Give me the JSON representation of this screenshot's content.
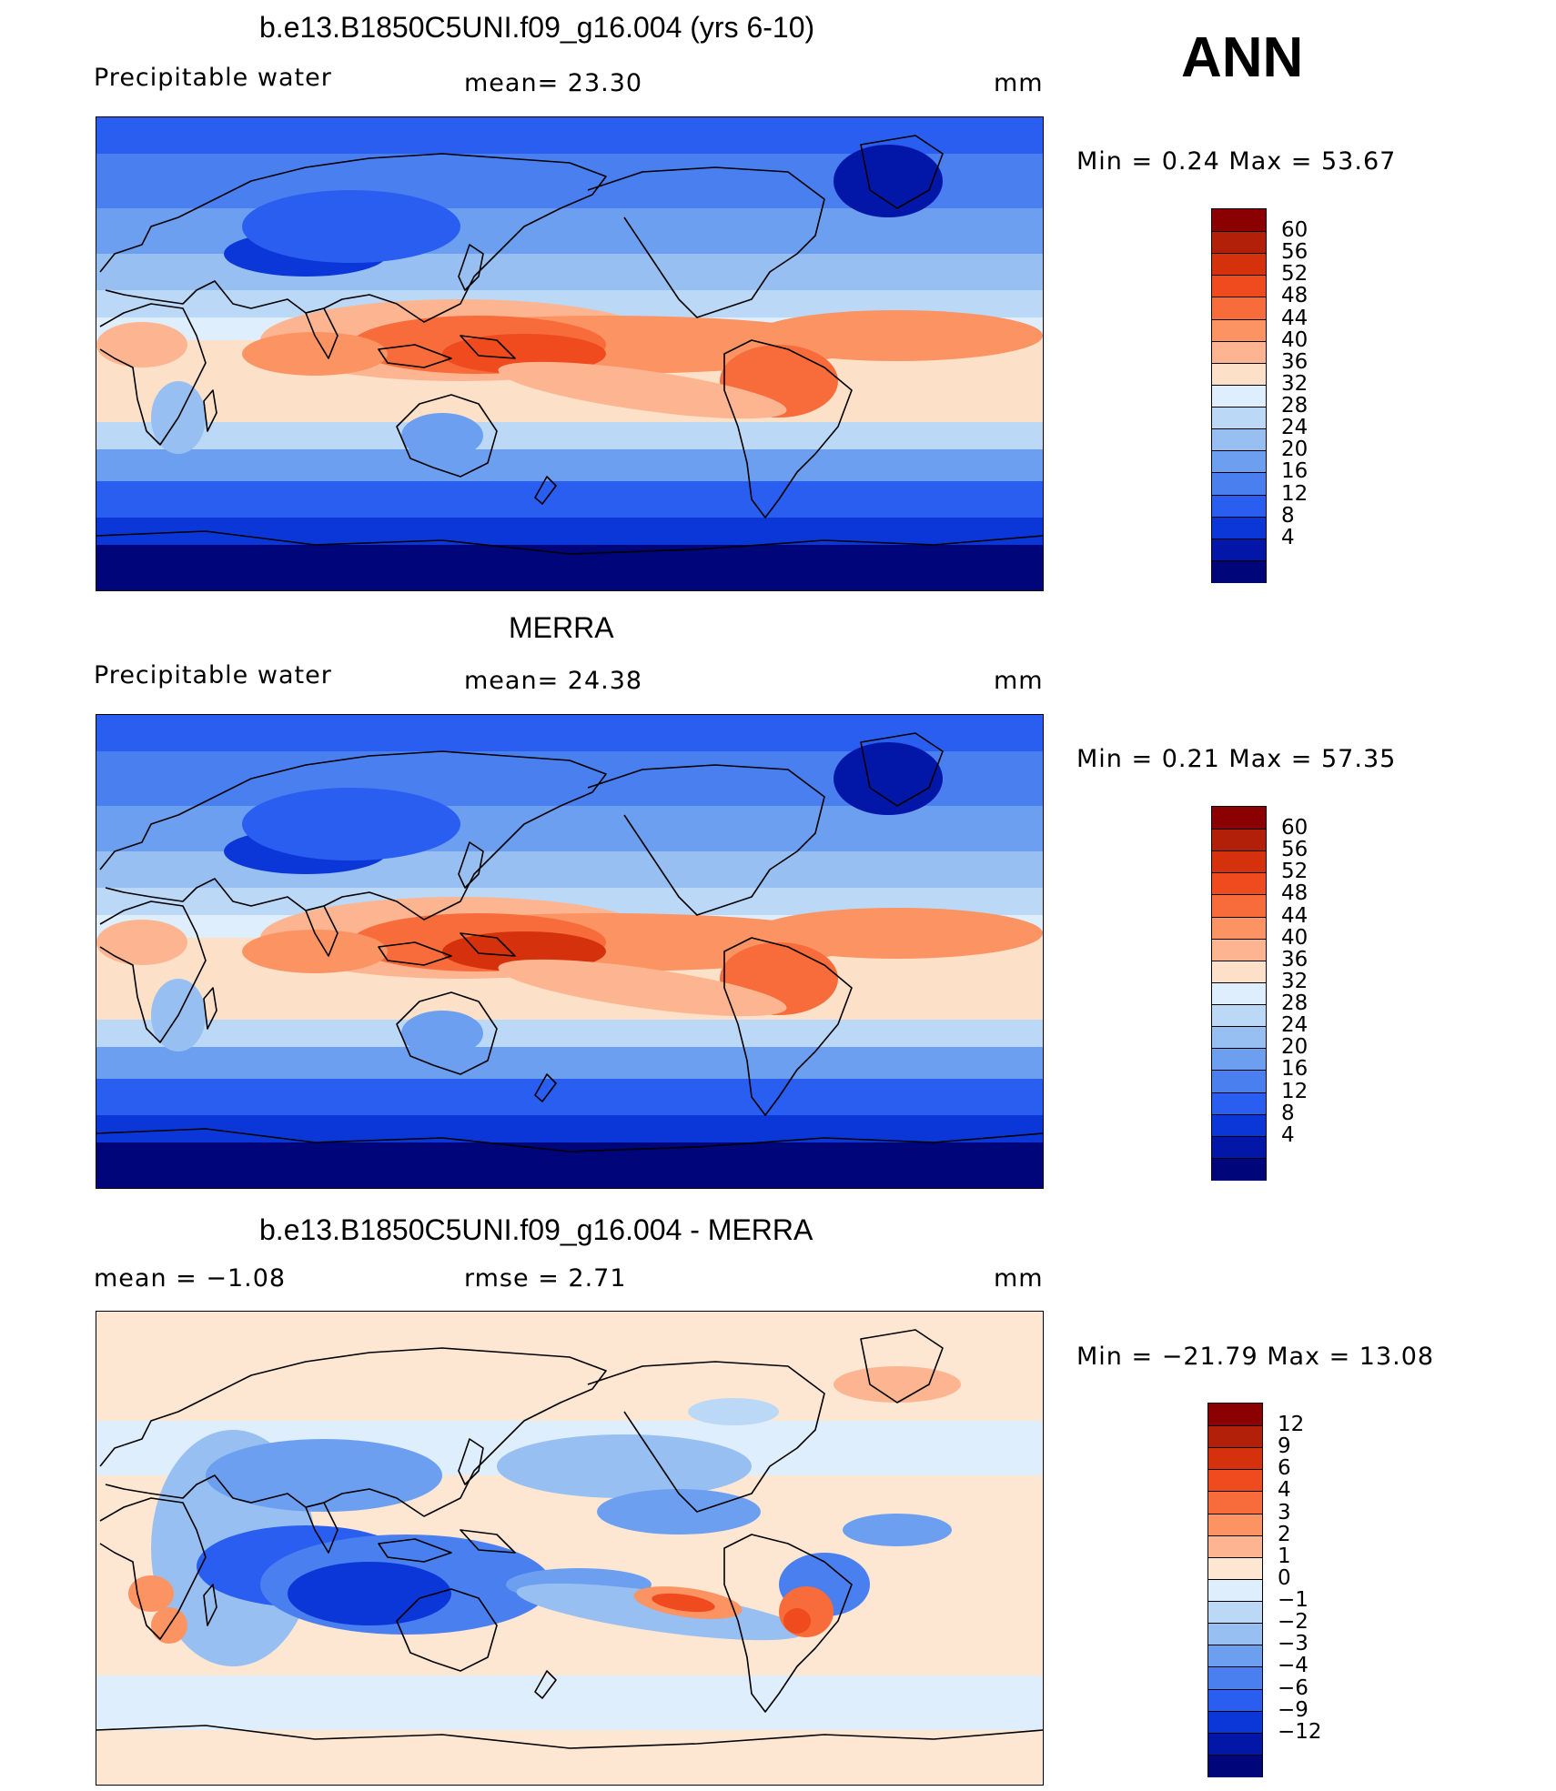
{
  "season": "ANN",
  "panels": [
    {
      "title": "b.e13.B1850C5UNI.f09_g16.004 (yrs 6-10)",
      "left_label": "Precipitable  water",
      "center_label": "mean=   23.30",
      "units": "mm",
      "minmax": "Min  =     0.24  Max  =    53.67",
      "field": "model",
      "colorbar": {
        "colors": [
          "#8b0000",
          "#b2200a",
          "#d4310c",
          "#f04b1e",
          "#f86c3b",
          "#fb9363",
          "#fcb590",
          "#fde0c8",
          "#dfeefc",
          "#bcd8f7",
          "#97bff1",
          "#6c9ff0",
          "#4a7ff0",
          "#2a5ef0",
          "#0c37d8",
          "#0217a8",
          "#00057a"
        ],
        "ticks": [
          "60",
          "56",
          "52",
          "48",
          "44",
          "40",
          "36",
          "32",
          "28",
          "24",
          "20",
          "16",
          "12",
          "8",
          "4"
        ]
      }
    },
    {
      "title": "MERRA",
      "left_label": "Precipitable  water",
      "center_label": "mean=   24.38",
      "units": "mm",
      "minmax": "Min  =     0.21  Max  =    57.35",
      "field": "obs",
      "colorbar": {
        "colors": [
          "#8b0000",
          "#b2200a",
          "#d4310c",
          "#f04b1e",
          "#f86c3b",
          "#fb9363",
          "#fcb590",
          "#fde0c8",
          "#dfeefc",
          "#bcd8f7",
          "#97bff1",
          "#6c9ff0",
          "#4a7ff0",
          "#2a5ef0",
          "#0c37d8",
          "#0217a8",
          "#00057a"
        ],
        "ticks": [
          "60",
          "56",
          "52",
          "48",
          "44",
          "40",
          "36",
          "32",
          "28",
          "24",
          "20",
          "16",
          "12",
          "8",
          "4"
        ]
      }
    },
    {
      "title": "b.e13.B1850C5UNI.f09_g16.004 - MERRA",
      "left_label": "mean  =    −1.08",
      "center_label": "rmse  =     2.71",
      "units": "mm",
      "minmax": "Min  = −21.79  Max  =    13.08",
      "field": "diff",
      "colorbar": {
        "colors": [
          "#8b0000",
          "#b2200a",
          "#d4310c",
          "#f04b1e",
          "#f86c3b",
          "#fb9363",
          "#fcb590",
          "#fde6d2",
          "#dfeefc",
          "#bcd8f7",
          "#97bff1",
          "#6c9ff0",
          "#4a7ff0",
          "#2a5ef0",
          "#0c37d8",
          "#0217a8",
          "#00057a"
        ],
        "ticks": [
          "12",
          "9",
          "6",
          "4",
          "3",
          "2",
          "1",
          "0",
          "−1",
          "−2",
          "−3",
          "−4",
          "−6",
          "−9",
          "−12"
        ]
      }
    }
  ]
}
